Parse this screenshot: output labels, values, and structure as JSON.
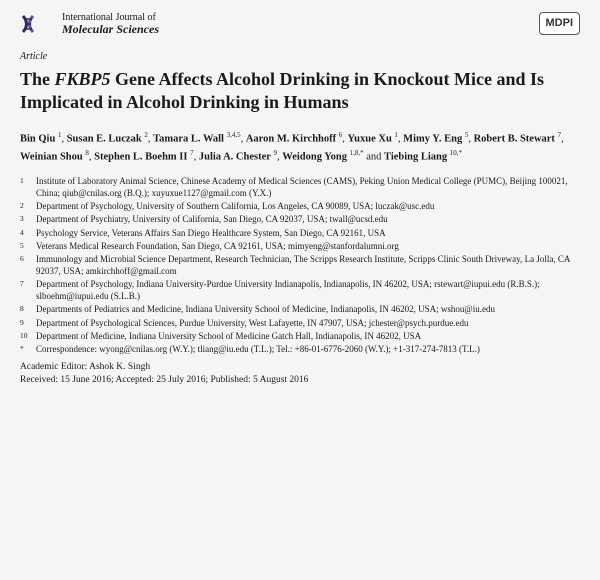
{
  "journal": {
    "line1": "International Journal of",
    "line2": "Molecular Sciences",
    "publisher": "MDPI",
    "icon_colors": {
      "strand": "#2b2b5a",
      "accent": "#6a4d9a"
    }
  },
  "article_label": "Article",
  "title": "The FKBP5 Gene Affects Alcohol Drinking in Knockout Mice and Is Implicated in Alcohol Drinking in Humans",
  "authors": [
    {
      "name": "Bin Qiu",
      "aff": "1"
    },
    {
      "name": "Susan E. Luczak",
      "aff": "2"
    },
    {
      "name": "Tamara L. Wall",
      "aff": "3,4,5"
    },
    {
      "name": "Aaron M. Kirchhoff",
      "aff": "6"
    },
    {
      "name": "Yuxue Xu",
      "aff": "1"
    },
    {
      "name": "Mimy Y. Eng",
      "aff": "5"
    },
    {
      "name": "Robert B. Stewart",
      "aff": "7"
    },
    {
      "name": "Weinian Shou",
      "aff": "8"
    },
    {
      "name": "Stephen L. Boehm II",
      "aff": "7"
    },
    {
      "name": "Julia A. Chester",
      "aff": "9"
    },
    {
      "name": "Weidong Yong",
      "aff": "1,8,*"
    },
    {
      "name": "Tiebing Liang",
      "aff": "10,*",
      "last_sep": " and "
    }
  ],
  "affiliations": [
    {
      "n": "1",
      "text": "Institute of Laboratory Animal Science, Chinese Academy of Medical Sciences (CAMS), Peking Union Medical College (PUMC), Beijing 100021, China; qiub@cnilas.org (B.Q.); xuyuxue1127@gmail.com (Y.X.)"
    },
    {
      "n": "2",
      "text": "Department of Psychology, University of Southern California, Los Angeles, CA 90089, USA; luczak@usc.edu"
    },
    {
      "n": "3",
      "text": "Department of Psychiatry, University of California, San Diego, CA 92037, USA; twall@ucsd.edu"
    },
    {
      "n": "4",
      "text": "Psychology Service, Veterans Affairs San Diego Healthcare System, San Diego, CA 92161, USA"
    },
    {
      "n": "5",
      "text": "Veterans Medical Research Foundation, San Diego, CA 92161, USA; mimyeng@stanfordalumni.org"
    },
    {
      "n": "6",
      "text": "Immunology and Microbial Science Department, Research Technician, The Scripps Research Institute, Scripps Clinic South Driveway, La Jolla, CA 92037, USA; amkirchhoff@gmail.com"
    },
    {
      "n": "7",
      "text": "Department of Psychology, Indiana University-Purdue University Indianapolis, Indianapolis, IN 46202, USA; rstewart@iupui.edu (R.B.S.); slboehm@iupui.edu (S.L.B.)"
    },
    {
      "n": "8",
      "text": "Departments of Pediatrics and Medicine, Indiana University School of Medicine, Indianapolis, IN 46202, USA; wshou@iu.edu"
    },
    {
      "n": "9",
      "text": "Department of Psychological Sciences, Purdue University, West Lafayette, IN 47907, USA; jchester@psych.purdue.edu"
    },
    {
      "n": "10",
      "text": "Department of Medicine, Indiana University School of Medicine Gatch Hall, Indianapolis, IN 46202, USA"
    },
    {
      "n": "*",
      "text": "Correspondence: wyong@cnilas.org (W.Y.); tliang@iu.edu (T.L.); Tel.: +86-01-6776-2060 (W.Y.); +1-317-274-7813 (T.L.)"
    }
  ],
  "editor": "Academic Editor: Ashok K. Singh",
  "dates": "Received: 15 June 2016; Accepted: 25 July 2016; Published: 5 August 2016",
  "colors": {
    "background": "#f5f5f5",
    "text": "#1a1a1a"
  }
}
